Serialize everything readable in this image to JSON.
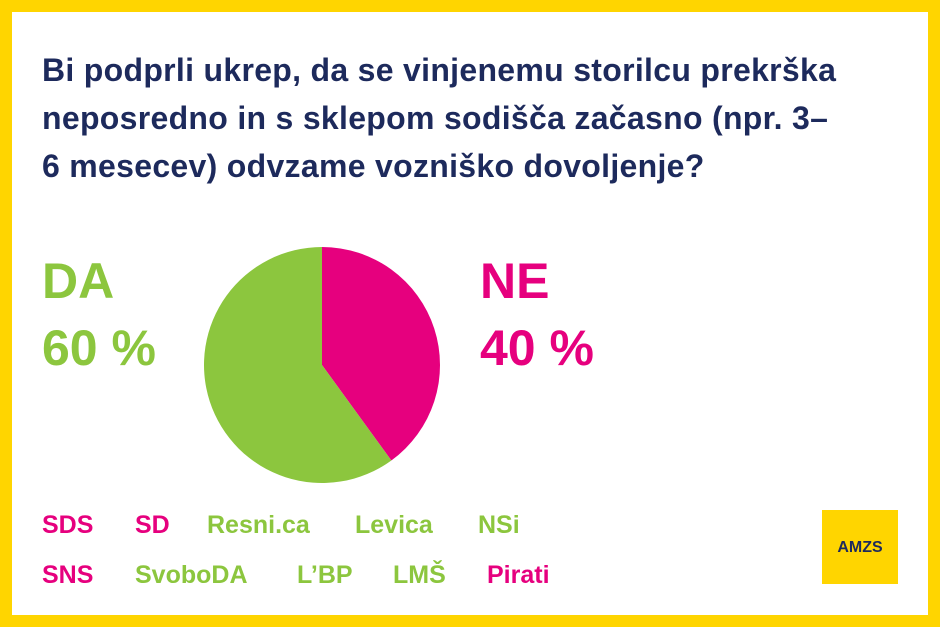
{
  "chart_data": {
    "type": "pie",
    "title": "Bi podprli ukrep, da se vinjenemu storilcu prekrška neposredno in s sklepom sodišča začasno (npr. 3–6 mesecev) odvzame vozniško dovoljenje?",
    "categories": [
      "DA",
      "NE"
    ],
    "values": [
      60,
      40
    ],
    "value_labels": [
      "60 %",
      "40 %"
    ],
    "colors": [
      "#8cc63e",
      "#e6007e"
    ]
  },
  "parties": [
    {
      "name": "SDS",
      "color": "#e6007e"
    },
    {
      "name": "SD",
      "color": "#e6007e"
    },
    {
      "name": "Resni.ca",
      "color": "#8cc63e"
    },
    {
      "name": "Levica",
      "color": "#8cc63e"
    },
    {
      "name": "NSi",
      "color": "#8cc63e"
    },
    {
      "name": "SNS",
      "color": "#e6007e"
    },
    {
      "name": "SvoboDA",
      "color": "#8cc63e"
    },
    {
      "name": "L’BP",
      "color": "#8cc63e"
    },
    {
      "name": "LMŠ",
      "color": "#8cc63e"
    },
    {
      "name": "Pirati",
      "color": "#e6007e"
    }
  ],
  "logo": "AMZS"
}
